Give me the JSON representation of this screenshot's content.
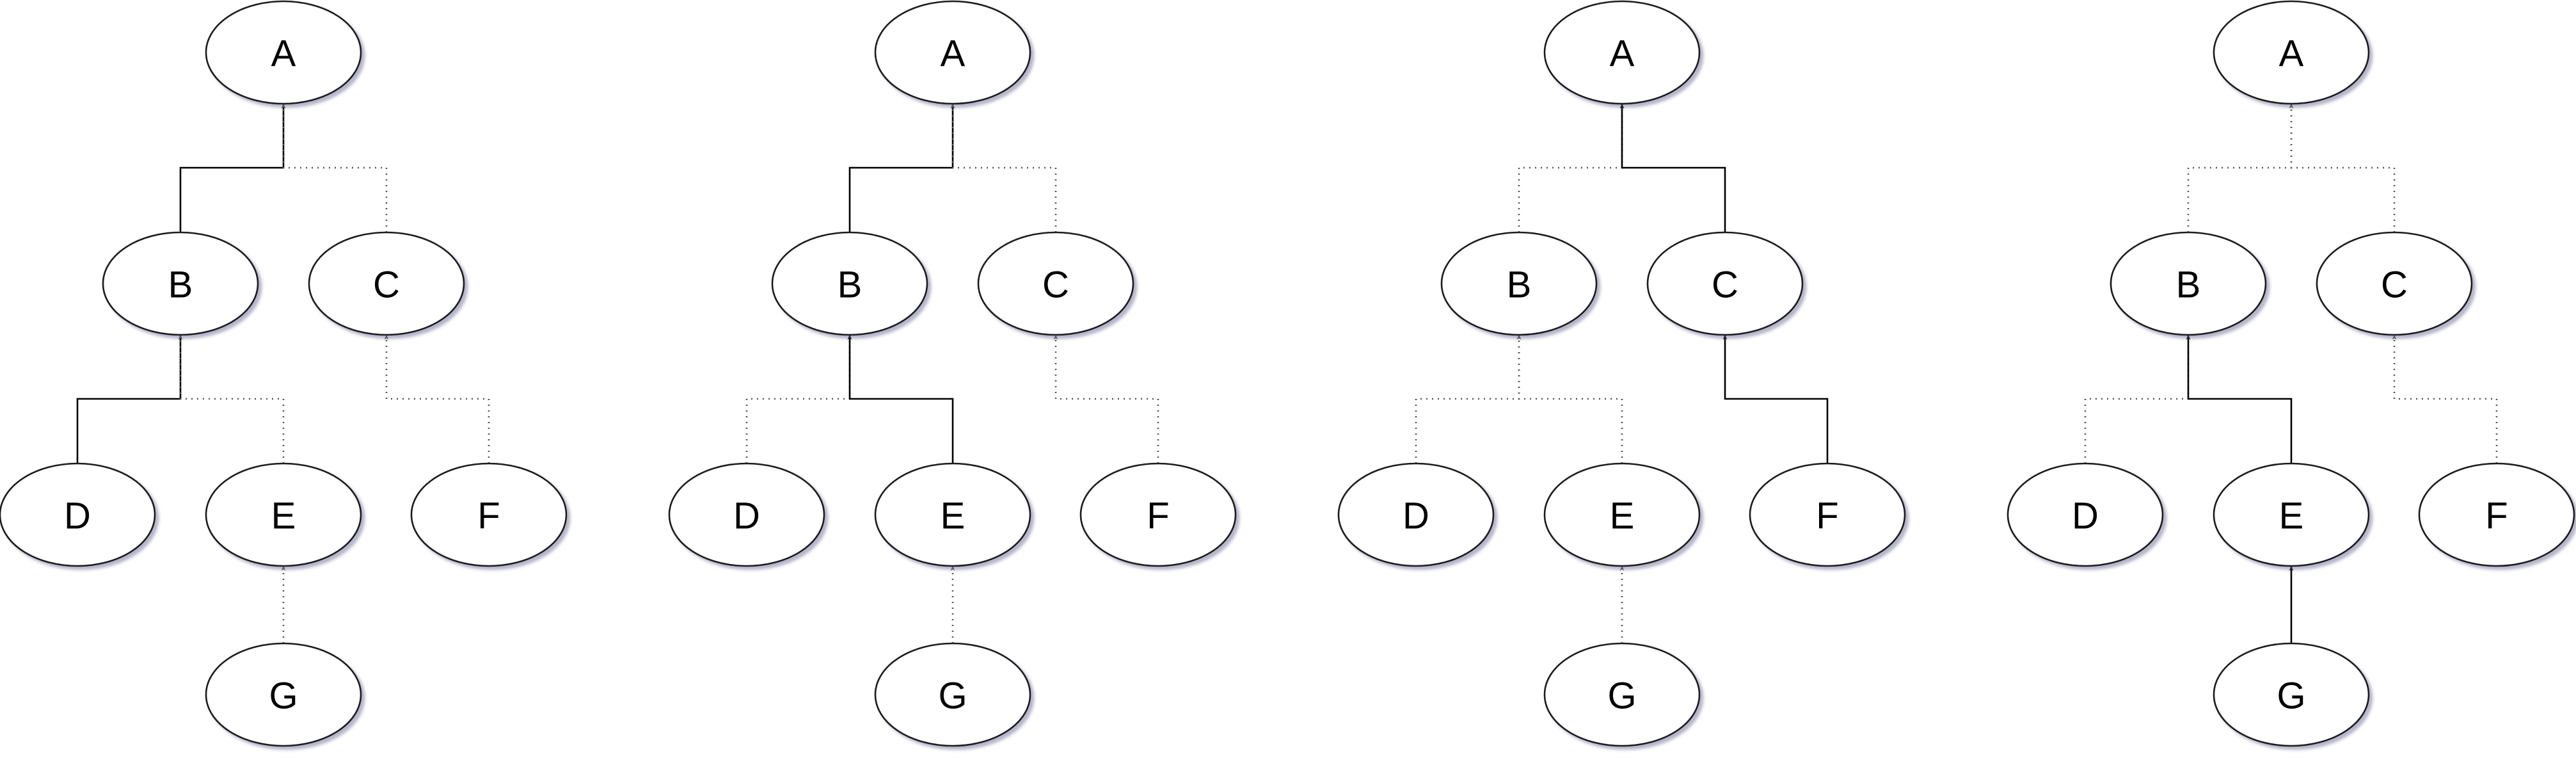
{
  "diagrams": [
    {
      "id": "tree-1",
      "nodes": [
        {
          "id": "A",
          "label": "A"
        },
        {
          "id": "B",
          "label": "B"
        },
        {
          "id": "C",
          "label": "C"
        },
        {
          "id": "D",
          "label": "D"
        },
        {
          "id": "E",
          "label": "E"
        },
        {
          "id": "F",
          "label": "F"
        },
        {
          "id": "G",
          "label": "G"
        }
      ],
      "edges": [
        {
          "from": "B",
          "to": "A",
          "style": "solid"
        },
        {
          "from": "C",
          "to": "A",
          "style": "dotted"
        },
        {
          "from": "D",
          "to": "B",
          "style": "solid"
        },
        {
          "from": "E",
          "to": "B",
          "style": "dotted"
        },
        {
          "from": "F",
          "to": "C",
          "style": "dotted"
        },
        {
          "from": "G",
          "to": "E",
          "style": "dotted"
        }
      ]
    },
    {
      "id": "tree-2",
      "nodes": [
        {
          "id": "A",
          "label": "A"
        },
        {
          "id": "B",
          "label": "B"
        },
        {
          "id": "C",
          "label": "C"
        },
        {
          "id": "D",
          "label": "D"
        },
        {
          "id": "E",
          "label": "E"
        },
        {
          "id": "F",
          "label": "F"
        },
        {
          "id": "G",
          "label": "G"
        }
      ],
      "edges": [
        {
          "from": "B",
          "to": "A",
          "style": "solid"
        },
        {
          "from": "C",
          "to": "A",
          "style": "dotted"
        },
        {
          "from": "D",
          "to": "B",
          "style": "dotted"
        },
        {
          "from": "E",
          "to": "B",
          "style": "solid"
        },
        {
          "from": "F",
          "to": "C",
          "style": "dotted"
        },
        {
          "from": "G",
          "to": "E",
          "style": "dotted"
        }
      ]
    },
    {
      "id": "tree-3",
      "nodes": [
        {
          "id": "A",
          "label": "A"
        },
        {
          "id": "B",
          "label": "B"
        },
        {
          "id": "C",
          "label": "C"
        },
        {
          "id": "D",
          "label": "D"
        },
        {
          "id": "E",
          "label": "E"
        },
        {
          "id": "F",
          "label": "F"
        },
        {
          "id": "G",
          "label": "G"
        }
      ],
      "edges": [
        {
          "from": "B",
          "to": "A",
          "style": "dotted"
        },
        {
          "from": "C",
          "to": "A",
          "style": "solid"
        },
        {
          "from": "D",
          "to": "B",
          "style": "dotted"
        },
        {
          "from": "E",
          "to": "B",
          "style": "dotted"
        },
        {
          "from": "F",
          "to": "C",
          "style": "solid"
        },
        {
          "from": "G",
          "to": "E",
          "style": "dotted"
        }
      ]
    },
    {
      "id": "tree-4",
      "nodes": [
        {
          "id": "A",
          "label": "A"
        },
        {
          "id": "B",
          "label": "B"
        },
        {
          "id": "C",
          "label": "C"
        },
        {
          "id": "D",
          "label": "D"
        },
        {
          "id": "E",
          "label": "E"
        },
        {
          "id": "F",
          "label": "F"
        },
        {
          "id": "G",
          "label": "G"
        }
      ],
      "edges": [
        {
          "from": "B",
          "to": "A",
          "style": "dotted"
        },
        {
          "from": "C",
          "to": "A",
          "style": "dotted"
        },
        {
          "from": "D",
          "to": "B",
          "style": "dotted"
        },
        {
          "from": "E",
          "to": "B",
          "style": "solid"
        },
        {
          "from": "F",
          "to": "C",
          "style": "dotted"
        },
        {
          "from": "G",
          "to": "E",
          "style": "solid"
        }
      ]
    }
  ]
}
